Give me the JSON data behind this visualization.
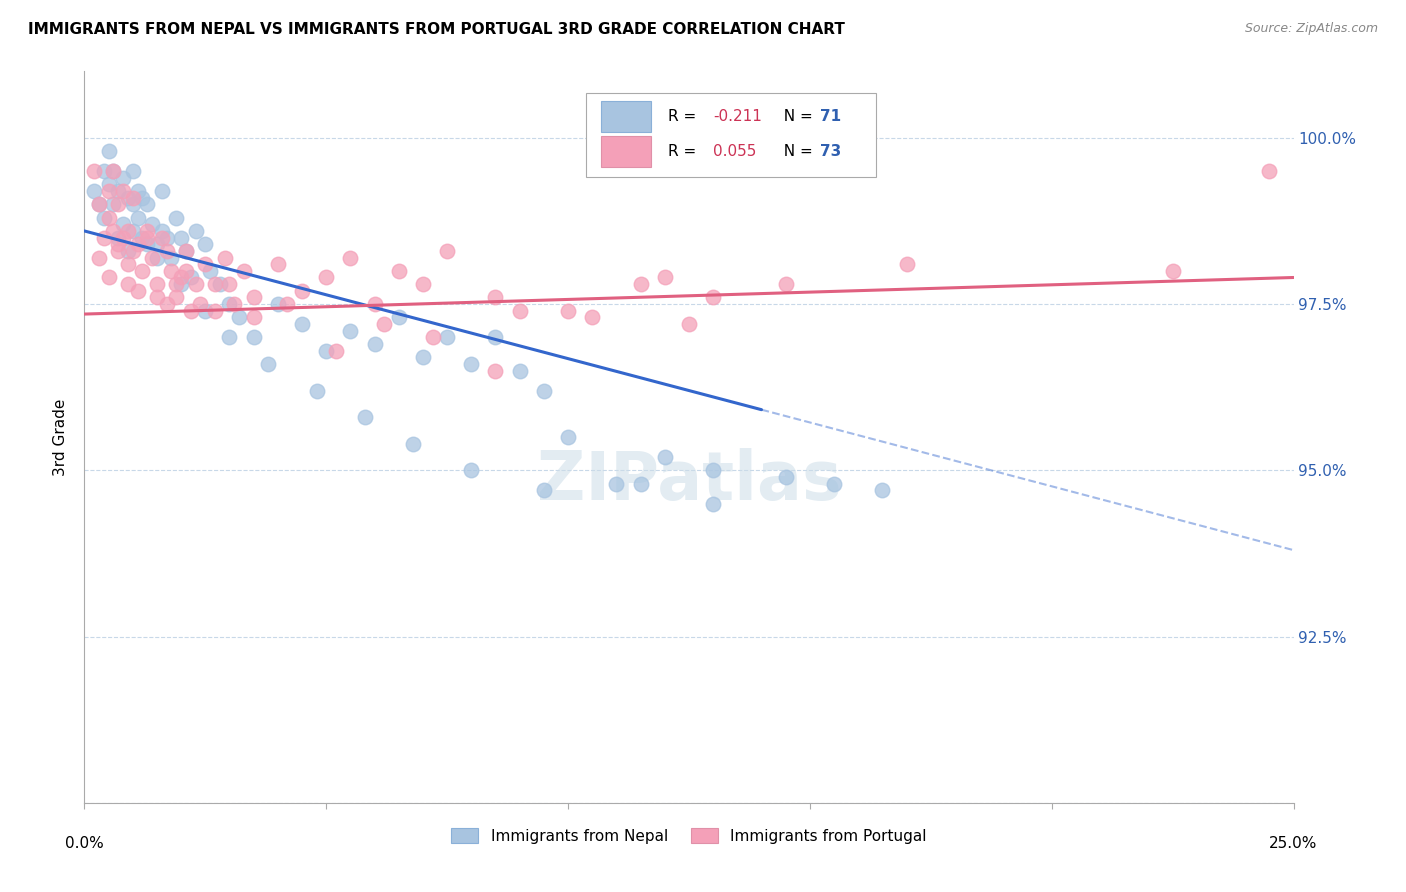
{
  "title": "IMMIGRANTS FROM NEPAL VS IMMIGRANTS FROM PORTUGAL 3RD GRADE CORRELATION CHART",
  "source": "Source: ZipAtlas.com",
  "ylabel": "3rd Grade",
  "xlim": [
    0.0,
    25.0
  ],
  "ylim": [
    90.0,
    101.0
  ],
  "y_ticks": [
    90.0,
    92.5,
    95.0,
    97.5,
    100.0
  ],
  "y_tick_labels": [
    "",
    "92.5%",
    "95.0%",
    "97.5%",
    "100.0%"
  ],
  "nepal_color": "#a8c4e0",
  "portugal_color": "#f4a0b8",
  "nepal_line_color": "#3366cc",
  "portugal_line_color": "#e06080",
  "nepal_R": -0.211,
  "nepal_N": 71,
  "portugal_R": 0.055,
  "portugal_N": 73,
  "nepal_line_x0": 0.0,
  "nepal_line_y0": 98.6,
  "nepal_line_x1": 25.0,
  "nepal_line_y1": 93.8,
  "nepal_solid_end": 14.0,
  "portugal_line_x0": 0.0,
  "portugal_line_y0": 97.35,
  "portugal_line_x1": 25.0,
  "portugal_line_y1": 97.9,
  "nepal_scatter_x": [
    0.2,
    0.3,
    0.4,
    0.4,
    0.5,
    0.5,
    0.6,
    0.6,
    0.7,
    0.7,
    0.8,
    0.8,
    0.9,
    0.9,
    1.0,
    1.0,
    1.0,
    1.1,
    1.1,
    1.2,
    1.2,
    1.3,
    1.3,
    1.4,
    1.5,
    1.6,
    1.6,
    1.7,
    1.8,
    1.9,
    2.0,
    2.1,
    2.2,
    2.3,
    2.5,
    2.6,
    2.8,
    3.0,
    3.2,
    3.5,
    4.0,
    4.5,
    5.0,
    5.5,
    6.0,
    6.5,
    7.0,
    7.5,
    8.0,
    8.5,
    9.0,
    9.5,
    10.0,
    11.0,
    12.0,
    13.0,
    1.5,
    2.0,
    2.5,
    3.0,
    3.8,
    4.8,
    5.8,
    6.8,
    8.0,
    9.5,
    11.5,
    13.0,
    14.5,
    15.5,
    16.5
  ],
  "nepal_scatter_y": [
    99.2,
    99.0,
    98.8,
    99.5,
    99.3,
    99.8,
    99.5,
    99.0,
    98.5,
    99.2,
    98.7,
    99.4,
    98.3,
    99.1,
    98.6,
    99.0,
    99.5,
    98.8,
    99.2,
    98.5,
    99.1,
    98.4,
    99.0,
    98.7,
    98.4,
    98.6,
    99.2,
    98.5,
    98.2,
    98.8,
    98.5,
    98.3,
    97.9,
    98.6,
    98.4,
    98.0,
    97.8,
    97.5,
    97.3,
    97.0,
    97.5,
    97.2,
    96.8,
    97.1,
    96.9,
    97.3,
    96.7,
    97.0,
    96.6,
    97.0,
    96.5,
    96.2,
    95.5,
    94.8,
    95.2,
    94.5,
    98.2,
    97.8,
    97.4,
    97.0,
    96.6,
    96.2,
    95.8,
    95.4,
    95.0,
    94.7,
    94.8,
    95.0,
    94.9,
    94.8,
    94.7
  ],
  "portugal_scatter_x": [
    0.2,
    0.3,
    0.4,
    0.5,
    0.5,
    0.6,
    0.6,
    0.7,
    0.7,
    0.8,
    0.8,
    0.9,
    0.9,
    1.0,
    1.0,
    1.1,
    1.2,
    1.3,
    1.4,
    1.5,
    1.6,
    1.7,
    1.8,
    1.9,
    2.0,
    2.1,
    2.2,
    2.3,
    2.5,
    2.7,
    2.9,
    3.1,
    3.3,
    3.5,
    4.0,
    4.5,
    5.0,
    5.5,
    6.0,
    6.5,
    7.0,
    7.5,
    8.5,
    9.0,
    10.5,
    11.5,
    12.0,
    13.0,
    0.3,
    0.5,
    0.7,
    0.9,
    1.1,
    1.3,
    1.5,
    1.7,
    1.9,
    2.1,
    2.4,
    2.7,
    3.0,
    3.5,
    4.2,
    5.2,
    6.2,
    7.2,
    8.5,
    10.0,
    12.5,
    14.5,
    17.0,
    22.5,
    24.5
  ],
  "portugal_scatter_y": [
    99.5,
    99.0,
    98.5,
    98.8,
    99.2,
    98.6,
    99.5,
    98.3,
    99.0,
    98.5,
    99.2,
    97.8,
    98.6,
    98.3,
    99.1,
    98.4,
    98.0,
    98.6,
    98.2,
    97.8,
    98.5,
    97.5,
    98.0,
    97.6,
    97.9,
    98.3,
    97.4,
    97.8,
    98.1,
    97.8,
    98.2,
    97.5,
    98.0,
    97.6,
    98.1,
    97.7,
    97.9,
    98.2,
    97.5,
    98.0,
    97.8,
    98.3,
    97.6,
    97.4,
    97.3,
    97.8,
    97.9,
    97.6,
    98.2,
    97.9,
    98.4,
    98.1,
    97.7,
    98.5,
    97.6,
    98.3,
    97.8,
    98.0,
    97.5,
    97.4,
    97.8,
    97.3,
    97.5,
    96.8,
    97.2,
    97.0,
    96.5,
    97.4,
    97.2,
    97.8,
    98.1,
    98.0,
    99.5
  ]
}
